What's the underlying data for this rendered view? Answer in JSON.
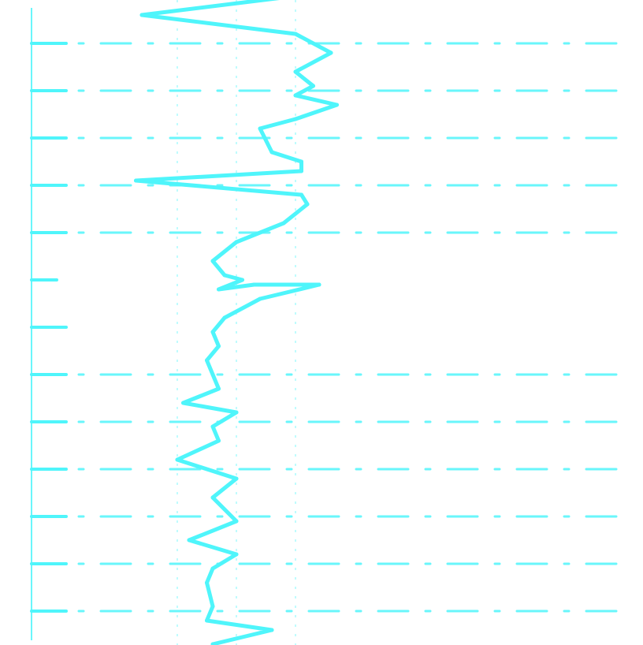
{
  "chart_data": {
    "type": "line",
    "orientation": "vertical",
    "title": "",
    "xlabel": "",
    "ylabel": "",
    "grid": true,
    "legend": "none",
    "color": "#4ff5fb",
    "xlim": [
      0,
      10
    ],
    "ylim": [
      0,
      13.5
    ],
    "y_gridlines": [
      1,
      2,
      3,
      4,
      5,
      6,
      7,
      8,
      9,
      10,
      11,
      12,
      13
    ],
    "x_gridlines": [
      3,
      4,
      5
    ],
    "series": [
      {
        "x": [
          5.0,
          2.4,
          5.0,
          5.6,
          5.0,
          5.3,
          5.0,
          5.7,
          5.0,
          4.4,
          4.6,
          5.1,
          5.1,
          2.3,
          5.1,
          5.2,
          4.8,
          4.0,
          3.6,
          3.8,
          4.1,
          3.7,
          4.3,
          5.4,
          4.4,
          3.8,
          3.6,
          3.7,
          3.5,
          3.6,
          3.7,
          3.1,
          4.0,
          3.6,
          3.7,
          3.0,
          4.0,
          3.6,
          4.0,
          3.2,
          4.0,
          3.6,
          3.5,
          3.6,
          3.5,
          4.6,
          3.6
        ],
        "y": [
          0.0,
          0.4,
          0.8,
          1.2,
          1.6,
          1.9,
          2.1,
          2.3,
          2.6,
          2.8,
          3.3,
          3.5,
          3.7,
          3.9,
          4.2,
          4.4,
          4.8,
          5.2,
          5.6,
          5.9,
          6.0,
          6.2,
          6.1,
          6.1,
          6.4,
          6.8,
          7.1,
          7.4,
          7.7,
          8.0,
          8.3,
          8.6,
          8.8,
          9.1,
          9.4,
          9.8,
          10.2,
          10.6,
          11.1,
          11.5,
          11.8,
          12.1,
          12.4,
          12.9,
          13.2,
          13.4,
          13.7
        ]
      }
    ]
  }
}
